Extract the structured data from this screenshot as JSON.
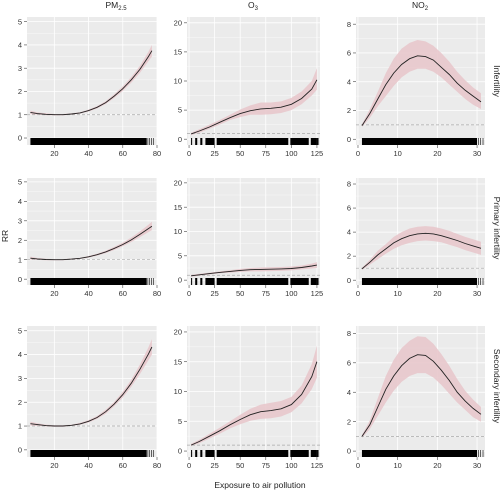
{
  "figure": {
    "ylabel": "RR",
    "xlabel": "Exposure to air pollution",
    "columns": [
      {
        "base": "PM",
        "sub": "2.5"
      },
      {
        "base": "O",
        "sub": "3"
      },
      {
        "base": "NO",
        "sub": "2"
      }
    ],
    "rows": [
      "Infertility",
      "Primary infertility",
      "Secondary infertility"
    ]
  },
  "colors": {
    "panel_bg": "#ebebeb",
    "grid": "#ffffff",
    "band": "#e8c8cc",
    "line": "#222222",
    "ref": "#aaaaaa",
    "rug": "#000000"
  },
  "chart_data": [
    {
      "type": "line",
      "row": "Infertility",
      "column": "PM2.5",
      "xlim": [
        4,
        80
      ],
      "ylim": [
        -0.3,
        5.2
      ],
      "xticks": [
        20,
        40,
        60,
        80
      ],
      "yticks": [
        0,
        1,
        2,
        3,
        4,
        5
      ],
      "x": [
        6,
        10,
        15,
        20,
        25,
        30,
        35,
        40,
        45,
        50,
        55,
        60,
        65,
        70,
        75,
        77
      ],
      "y": [
        1.1,
        1.05,
        1.02,
        1.0,
        1.0,
        1.03,
        1.08,
        1.18,
        1.32,
        1.52,
        1.8,
        2.12,
        2.5,
        2.95,
        3.5,
        3.75
      ],
      "lower": [
        1.02,
        1.0,
        0.98,
        0.97,
        0.97,
        1.0,
        1.05,
        1.14,
        1.27,
        1.46,
        1.72,
        2.02,
        2.38,
        2.8,
        3.3,
        3.5
      ],
      "upper": [
        1.18,
        1.1,
        1.06,
        1.03,
        1.03,
        1.06,
        1.11,
        1.22,
        1.37,
        1.58,
        1.88,
        2.22,
        2.62,
        3.1,
        3.7,
        4.0
      ],
      "rug": [
        [
          6,
          74
        ]
      ]
    },
    {
      "type": "line",
      "row": "Infertility",
      "column": "O3",
      "xlim": [
        -2,
        128
      ],
      "ylim": [
        -1,
        21
      ],
      "xticks": [
        0,
        25,
        50,
        75,
        100,
        125
      ],
      "yticks": [
        0,
        5,
        10,
        15,
        20
      ],
      "x": [
        2,
        10,
        20,
        30,
        40,
        50,
        60,
        70,
        80,
        90,
        100,
        110,
        120,
        125
      ],
      "y": [
        0.9,
        1.4,
        2.1,
        2.9,
        3.7,
        4.4,
        4.9,
        5.2,
        5.3,
        5.5,
        6.0,
        7.0,
        8.6,
        10.2
      ],
      "lower": [
        0.7,
        1.1,
        1.8,
        2.5,
        3.3,
        3.8,
        4.2,
        4.2,
        4.3,
        4.5,
        5.0,
        6.0,
        7.5,
        8.5
      ],
      "upper": [
        1.1,
        1.7,
        2.5,
        3.3,
        4.2,
        5.1,
        5.8,
        6.3,
        6.3,
        6.5,
        7.1,
        8.2,
        10.0,
        12.2
      ],
      "rug": [
        [
          2,
          3
        ],
        [
          6,
          8
        ],
        [
          11,
          13
        ],
        [
          16,
          25
        ],
        [
          27,
          97
        ],
        [
          99,
          117
        ],
        [
          119,
          125
        ]
      ]
    },
    {
      "type": "line",
      "row": "Infertility",
      "column": "NO2",
      "xlim": [
        -0.5,
        32
      ],
      "ylim": [
        -0.4,
        8.5
      ],
      "xticks": [
        0,
        10,
        20,
        30
      ],
      "yticks": [
        0,
        2,
        4,
        6,
        8
      ],
      "x": [
        1,
        3,
        5,
        7,
        9,
        11,
        13,
        15,
        17,
        19,
        21,
        23,
        25,
        27,
        29,
        31
      ],
      "y": [
        0.95,
        1.8,
        2.8,
        3.8,
        4.6,
        5.2,
        5.6,
        5.8,
        5.75,
        5.5,
        5.0,
        4.5,
        3.9,
        3.4,
        3.0,
        2.6
      ],
      "lower": [
        0.85,
        1.5,
        2.3,
        3.0,
        3.7,
        4.3,
        4.7,
        4.9,
        4.9,
        4.7,
        4.3,
        3.8,
        3.3,
        2.8,
        2.4,
        2.1
      ],
      "upper": [
        1.05,
        2.1,
        3.3,
        4.6,
        5.6,
        6.3,
        6.7,
        6.9,
        6.8,
        6.5,
        6.0,
        5.4,
        4.7,
        4.1,
        3.6,
        3.2
      ],
      "rug": [
        [
          1,
          30
        ]
      ]
    },
    {
      "type": "line",
      "row": "Primary infertility",
      "column": "PM2.5",
      "xlim": [
        4,
        80
      ],
      "ylim": [
        -0.3,
        5.2
      ],
      "xticks": [
        20,
        40,
        60,
        80
      ],
      "yticks": [
        0,
        1,
        2,
        3,
        4,
        5
      ],
      "x": [
        6,
        10,
        15,
        20,
        25,
        30,
        35,
        40,
        45,
        50,
        55,
        60,
        65,
        70,
        75,
        77
      ],
      "y": [
        1.08,
        1.04,
        1.01,
        1.0,
        1.0,
        1.03,
        1.07,
        1.15,
        1.26,
        1.4,
        1.58,
        1.78,
        2.02,
        2.3,
        2.6,
        2.72
      ],
      "lower": [
        1.0,
        0.99,
        0.97,
        0.97,
        0.97,
        1.0,
        1.04,
        1.11,
        1.21,
        1.34,
        1.5,
        1.69,
        1.91,
        2.16,
        2.42,
        2.52
      ],
      "upper": [
        1.16,
        1.09,
        1.05,
        1.03,
        1.03,
        1.06,
        1.1,
        1.19,
        1.31,
        1.46,
        1.66,
        1.88,
        2.14,
        2.45,
        2.8,
        2.95
      ],
      "rug": [
        [
          6,
          74
        ]
      ]
    },
    {
      "type": "line",
      "row": "Primary infertility",
      "column": "O3",
      "xlim": [
        -2,
        128
      ],
      "ylim": [
        -1,
        21
      ],
      "xticks": [
        0,
        25,
        50,
        75,
        100,
        125
      ],
      "yticks": [
        0,
        5,
        10,
        15,
        20
      ],
      "x": [
        2,
        10,
        20,
        30,
        40,
        50,
        60,
        70,
        80,
        90,
        100,
        110,
        120,
        125
      ],
      "y": [
        0.9,
        1.1,
        1.35,
        1.6,
        1.8,
        2.0,
        2.15,
        2.2,
        2.25,
        2.3,
        2.4,
        2.6,
        2.9,
        3.1
      ],
      "lower": [
        0.7,
        0.9,
        1.15,
        1.4,
        1.55,
        1.7,
        1.8,
        1.8,
        1.85,
        1.9,
        2.0,
        2.2,
        2.4,
        2.5
      ],
      "upper": [
        1.1,
        1.3,
        1.55,
        1.8,
        2.05,
        2.3,
        2.5,
        2.6,
        2.65,
        2.7,
        2.8,
        3.0,
        3.4,
        3.7
      ],
      "rug": [
        [
          2,
          3
        ],
        [
          6,
          8
        ],
        [
          11,
          13
        ],
        [
          16,
          25
        ],
        [
          27,
          97
        ],
        [
          99,
          117
        ],
        [
          119,
          125
        ]
      ]
    },
    {
      "type": "line",
      "row": "Primary infertility",
      "column": "NO2",
      "xlim": [
        -0.5,
        32
      ],
      "ylim": [
        -0.4,
        8.5
      ],
      "xticks": [
        0,
        10,
        20,
        30
      ],
      "yticks": [
        0,
        2,
        4,
        6,
        8
      ],
      "x": [
        1,
        3,
        5,
        7,
        9,
        11,
        13,
        15,
        17,
        19,
        21,
        23,
        25,
        27,
        29,
        31
      ],
      "y": [
        0.95,
        1.5,
        2.1,
        2.6,
        3.1,
        3.45,
        3.7,
        3.85,
        3.9,
        3.85,
        3.7,
        3.5,
        3.3,
        3.05,
        2.85,
        2.65
      ],
      "lower": [
        0.85,
        1.3,
        1.75,
        2.2,
        2.6,
        2.9,
        3.1,
        3.25,
        3.3,
        3.25,
        3.15,
        2.95,
        2.75,
        2.5,
        2.3,
        2.1
      ],
      "upper": [
        1.05,
        1.7,
        2.45,
        3.0,
        3.6,
        4.0,
        4.3,
        4.45,
        4.5,
        4.45,
        4.3,
        4.1,
        3.85,
        3.6,
        3.4,
        3.2
      ],
      "rug": [
        [
          1,
          30
        ]
      ]
    },
    {
      "type": "line",
      "row": "Secondary infertility",
      "column": "PM2.5",
      "xlim": [
        4,
        80
      ],
      "ylim": [
        -0.3,
        5.2
      ],
      "xticks": [
        20,
        40,
        60,
        80
      ],
      "yticks": [
        0,
        1,
        2,
        3,
        4,
        5
      ],
      "x": [
        6,
        10,
        15,
        20,
        25,
        30,
        35,
        40,
        45,
        50,
        55,
        60,
        65,
        70,
        75,
        77
      ],
      "y": [
        1.1,
        1.06,
        1.02,
        1.0,
        1.0,
        1.03,
        1.09,
        1.2,
        1.36,
        1.6,
        1.92,
        2.32,
        2.8,
        3.38,
        4.02,
        4.32
      ],
      "lower": [
        1.02,
        1.0,
        0.98,
        0.97,
        0.97,
        1.0,
        1.05,
        1.15,
        1.3,
        1.52,
        1.83,
        2.2,
        2.65,
        3.18,
        3.76,
        4.0
      ],
      "upper": [
        1.18,
        1.12,
        1.06,
        1.03,
        1.03,
        1.06,
        1.13,
        1.25,
        1.42,
        1.68,
        2.01,
        2.44,
        2.95,
        3.58,
        4.3,
        4.65
      ],
      "rug": [
        [
          6,
          74
        ]
      ]
    },
    {
      "type": "line",
      "row": "Secondary infertility",
      "column": "O3",
      "xlim": [
        -2,
        128
      ],
      "ylim": [
        -1,
        21
      ],
      "xticks": [
        0,
        25,
        50,
        75,
        100,
        125
      ],
      "yticks": [
        0,
        5,
        10,
        15,
        20
      ],
      "x": [
        2,
        10,
        20,
        30,
        40,
        50,
        60,
        70,
        80,
        90,
        100,
        110,
        120,
        125
      ],
      "y": [
        1.0,
        1.6,
        2.5,
        3.4,
        4.4,
        5.3,
        6.1,
        6.6,
        6.8,
        7.1,
        7.8,
        9.5,
        12.5,
        15.0
      ],
      "lower": [
        0.8,
        1.3,
        2.1,
        2.9,
        3.8,
        4.5,
        5.1,
        5.4,
        5.5,
        5.8,
        6.5,
        8.0,
        10.4,
        12.3
      ],
      "upper": [
        1.2,
        1.9,
        2.9,
        3.9,
        5.0,
        6.1,
        7.1,
        7.8,
        8.1,
        8.4,
        9.1,
        11.0,
        14.6,
        17.7
      ],
      "rug": [
        [
          2,
          3
        ],
        [
          6,
          8
        ],
        [
          11,
          13
        ],
        [
          16,
          25
        ],
        [
          27,
          97
        ],
        [
          99,
          117
        ],
        [
          119,
          125
        ]
      ]
    },
    {
      "type": "line",
      "row": "Secondary infertility",
      "column": "NO2",
      "xlim": [
        -0.5,
        32
      ],
      "ylim": [
        -0.4,
        8.5
      ],
      "xticks": [
        0,
        10,
        20,
        30
      ],
      "yticks": [
        0,
        2,
        4,
        6,
        8
      ],
      "x": [
        1,
        3,
        5,
        7,
        9,
        11,
        13,
        15,
        17,
        19,
        21,
        23,
        25,
        27,
        29,
        31
      ],
      "y": [
        1.0,
        1.8,
        3.0,
        4.2,
        5.1,
        5.8,
        6.3,
        6.55,
        6.5,
        6.1,
        5.5,
        4.8,
        4.0,
        3.4,
        2.9,
        2.5
      ],
      "lower": [
        0.9,
        1.5,
        2.4,
        3.3,
        4.1,
        4.7,
        5.1,
        5.3,
        5.3,
        5.0,
        4.5,
        3.9,
        3.3,
        2.8,
        2.3,
        2.0
      ],
      "upper": [
        1.1,
        2.1,
        3.6,
        5.1,
        6.2,
        7.0,
        7.5,
        7.8,
        7.75,
        7.3,
        6.6,
        5.8,
        4.9,
        4.1,
        3.5,
        3.0
      ],
      "rug": [
        [
          1,
          30
        ]
      ]
    }
  ]
}
